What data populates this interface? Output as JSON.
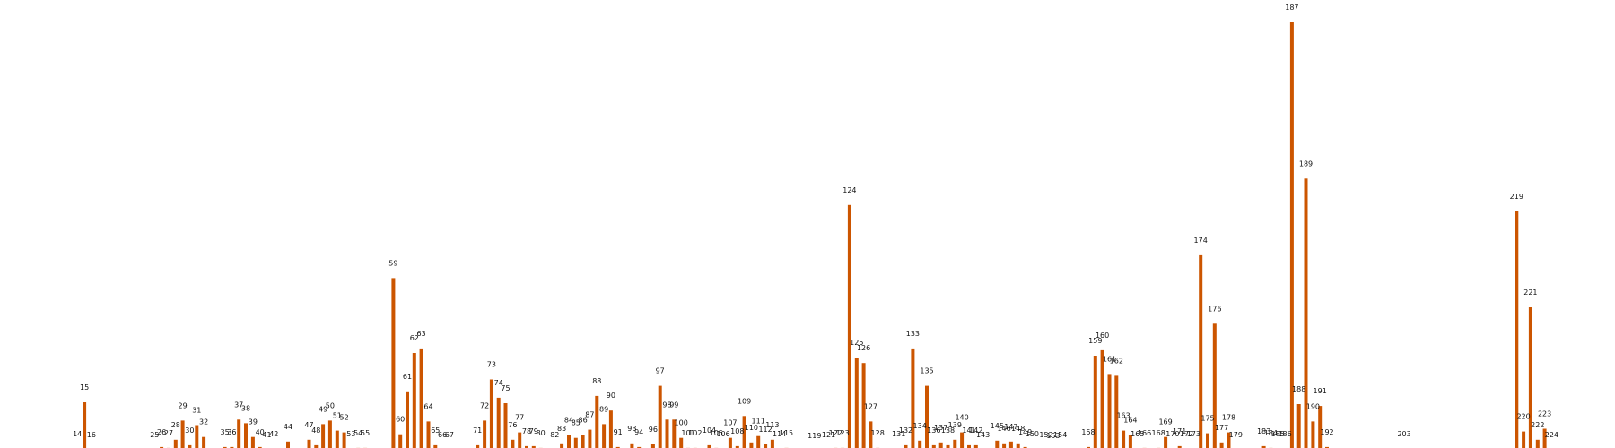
{
  "chart_data": {
    "type": "bar",
    "title": "",
    "xlabel": "",
    "ylabel": "",
    "ylim": [
      0,
      470
    ],
    "grid": false,
    "legend": "none",
    "bar_color": "#cc5500",
    "x_range": [
      4,
      232
    ],
    "bars": [
      {
        "x": 14,
        "value": 2,
        "label": "14"
      },
      {
        "x": 15,
        "value": 53,
        "label": "15"
      },
      {
        "x": 16,
        "value": 1,
        "label": "16"
      },
      {
        "x": 25,
        "value": 1,
        "label": "25"
      },
      {
        "x": 26,
        "value": 4,
        "label": "26"
      },
      {
        "x": 27,
        "value": 3,
        "label": "27"
      },
      {
        "x": 28,
        "value": 12,
        "label": "28"
      },
      {
        "x": 29,
        "value": 33,
        "label": "29"
      },
      {
        "x": 30,
        "value": 6,
        "label": "30"
      },
      {
        "x": 31,
        "value": 28,
        "label": "31"
      },
      {
        "x": 32,
        "value": 15,
        "label": "32"
      },
      {
        "x": 35,
        "value": 4,
        "label": "35"
      },
      {
        "x": 36,
        "value": 4,
        "label": "36"
      },
      {
        "x": 37,
        "value": 34,
        "label": "37"
      },
      {
        "x": 38,
        "value": 30,
        "label": "38"
      },
      {
        "x": 39,
        "value": 15,
        "label": "39"
      },
      {
        "x": 40,
        "value": 4,
        "label": "40"
      },
      {
        "x": 41,
        "value": 1,
        "label": "41"
      },
      {
        "x": 42,
        "value": 2,
        "label": "42"
      },
      {
        "x": 44,
        "value": 10,
        "label": "44"
      },
      {
        "x": 47,
        "value": 12,
        "label": "47"
      },
      {
        "x": 48,
        "value": 6,
        "label": "48"
      },
      {
        "x": 49,
        "value": 29,
        "label": "49"
      },
      {
        "x": 50,
        "value": 33,
        "label": "50"
      },
      {
        "x": 51,
        "value": 22,
        "label": "51"
      },
      {
        "x": 52,
        "value": 20,
        "label": "52"
      },
      {
        "x": 53,
        "value": 2,
        "label": "53"
      },
      {
        "x": 54,
        "value": 3,
        "label": "54"
      },
      {
        "x": 55,
        "value": 3,
        "label": "55"
      },
      {
        "x": 59,
        "value": 189,
        "label": "59"
      },
      {
        "x": 60,
        "value": 18,
        "label": "60"
      },
      {
        "x": 61,
        "value": 65,
        "label": "61"
      },
      {
        "x": 62,
        "value": 107,
        "label": "62"
      },
      {
        "x": 63,
        "value": 112,
        "label": "63"
      },
      {
        "x": 64,
        "value": 32,
        "label": "64"
      },
      {
        "x": 65,
        "value": 6,
        "label": "65"
      },
      {
        "x": 66,
        "value": 1,
        "label": "66"
      },
      {
        "x": 67,
        "value": 1,
        "label": "67"
      },
      {
        "x": 71,
        "value": 6,
        "label": "71"
      },
      {
        "x": 72,
        "value": 33,
        "label": "72"
      },
      {
        "x": 73,
        "value": 78,
        "label": "73"
      },
      {
        "x": 74,
        "value": 58,
        "label": "74"
      },
      {
        "x": 75,
        "value": 52,
        "label": "75"
      },
      {
        "x": 76,
        "value": 12,
        "label": "76"
      },
      {
        "x": 77,
        "value": 20,
        "label": "77"
      },
      {
        "x": 78,
        "value": 5,
        "label": "78"
      },
      {
        "x": 79,
        "value": 5,
        "label": "79"
      },
      {
        "x": 80,
        "value": 3,
        "label": "80"
      },
      {
        "x": 82,
        "value": 1,
        "label": "82"
      },
      {
        "x": 83,
        "value": 8,
        "label": "83"
      },
      {
        "x": 84,
        "value": 17,
        "label": "84"
      },
      {
        "x": 85,
        "value": 14,
        "label": "85"
      },
      {
        "x": 86,
        "value": 17,
        "label": "86"
      },
      {
        "x": 87,
        "value": 23,
        "label": "87"
      },
      {
        "x": 88,
        "value": 60,
        "label": "88"
      },
      {
        "x": 89,
        "value": 29,
        "label": "89"
      },
      {
        "x": 90,
        "value": 44,
        "label": "90"
      },
      {
        "x": 91,
        "value": 4,
        "label": "91"
      },
      {
        "x": 93,
        "value": 8,
        "label": "93"
      },
      {
        "x": 94,
        "value": 4,
        "label": "94"
      },
      {
        "x": 96,
        "value": 7,
        "label": "96"
      },
      {
        "x": 97,
        "value": 71,
        "label": "97"
      },
      {
        "x": 98,
        "value": 34,
        "label": "98"
      },
      {
        "x": 99,
        "value": 34,
        "label": "99"
      },
      {
        "x": 100,
        "value": 14,
        "label": "100"
      },
      {
        "x": 101,
        "value": 3,
        "label": "101"
      },
      {
        "x": 102,
        "value": 3,
        "label": "102"
      },
      {
        "x": 104,
        "value": 6,
        "label": "104"
      },
      {
        "x": 105,
        "value": 3,
        "label": "105"
      },
      {
        "x": 106,
        "value": 2,
        "label": "106"
      },
      {
        "x": 107,
        "value": 14,
        "label": "107"
      },
      {
        "x": 108,
        "value": 5,
        "label": "108"
      },
      {
        "x": 109,
        "value": 38,
        "label": "109"
      },
      {
        "x": 110,
        "value": 9,
        "label": "110"
      },
      {
        "x": 111,
        "value": 16,
        "label": "111"
      },
      {
        "x": 112,
        "value": 7,
        "label": "112"
      },
      {
        "x": 113,
        "value": 12,
        "label": "113"
      },
      {
        "x": 114,
        "value": 2,
        "label": "114"
      },
      {
        "x": 115,
        "value": 3,
        "label": "115"
      },
      {
        "x": 119,
        "value": 0,
        "label": "119"
      },
      {
        "x": 121,
        "value": 1,
        "label": "121"
      },
      {
        "x": 122,
        "value": 3,
        "label": "122"
      },
      {
        "x": 123,
        "value": 3,
        "label": "123"
      },
      {
        "x": 124,
        "value": 269,
        "label": "124"
      },
      {
        "x": 125,
        "value": 102,
        "label": "125"
      },
      {
        "x": 126,
        "value": 96,
        "label": "126"
      },
      {
        "x": 127,
        "value": 32,
        "label": "127"
      },
      {
        "x": 128,
        "value": 3,
        "label": "128"
      },
      {
        "x": 131,
        "value": 2,
        "label": "131"
      },
      {
        "x": 132,
        "value": 6,
        "label": "132"
      },
      {
        "x": 133,
        "value": 112,
        "label": "133"
      },
      {
        "x": 134,
        "value": 11,
        "label": "134"
      },
      {
        "x": 135,
        "value": 71,
        "label": "135"
      },
      {
        "x": 136,
        "value": 6,
        "label": "136"
      },
      {
        "x": 137,
        "value": 9,
        "label": "137"
      },
      {
        "x": 138,
        "value": 6,
        "label": "138"
      },
      {
        "x": 139,
        "value": 12,
        "label": "139"
      },
      {
        "x": 140,
        "value": 20,
        "label": "140"
      },
      {
        "x": 141,
        "value": 6,
        "label": "141"
      },
      {
        "x": 142,
        "value": 6,
        "label": "142"
      },
      {
        "x": 143,
        "value": 1,
        "label": "143"
      },
      {
        "x": 145,
        "value": 11,
        "label": "145"
      },
      {
        "x": 146,
        "value": 8,
        "label": "146"
      },
      {
        "x": 147,
        "value": 10,
        "label": "147"
      },
      {
        "x": 148,
        "value": 8,
        "label": "148"
      },
      {
        "x": 149,
        "value": 4,
        "label": "149"
      },
      {
        "x": 150,
        "value": 2,
        "label": "150"
      },
      {
        "x": 152,
        "value": 1,
        "label": "152"
      },
      {
        "x": 153,
        "value": 0,
        "label": "153"
      },
      {
        "x": 154,
        "value": 1,
        "label": "154"
      },
      {
        "x": 158,
        "value": 4,
        "label": "158"
      },
      {
        "x": 159,
        "value": 104,
        "label": "159"
      },
      {
        "x": 160,
        "value": 110,
        "label": "160"
      },
      {
        "x": 161,
        "value": 84,
        "label": "161"
      },
      {
        "x": 162,
        "value": 82,
        "label": "162"
      },
      {
        "x": 163,
        "value": 22,
        "label": "163"
      },
      {
        "x": 164,
        "value": 17,
        "label": "164"
      },
      {
        "x": 165,
        "value": 2,
        "label": "165"
      },
      {
        "x": 166,
        "value": 3,
        "label": "166"
      },
      {
        "x": 168,
        "value": 3,
        "label": "168"
      },
      {
        "x": 169,
        "value": 15,
        "label": "169"
      },
      {
        "x": 170,
        "value": 2,
        "label": "170"
      },
      {
        "x": 171,
        "value": 5,
        "label": "171"
      },
      {
        "x": 172,
        "value": 2,
        "label": "172"
      },
      {
        "x": 173,
        "value": 2,
        "label": "173"
      },
      {
        "x": 174,
        "value": 214,
        "label": "174"
      },
      {
        "x": 175,
        "value": 19,
        "label": "175"
      },
      {
        "x": 176,
        "value": 139,
        "label": "176"
      },
      {
        "x": 177,
        "value": 9,
        "label": "177"
      },
      {
        "x": 178,
        "value": 20,
        "label": "178"
      },
      {
        "x": 179,
        "value": 1,
        "label": "179"
      },
      {
        "x": 183,
        "value": 5,
        "label": "183"
      },
      {
        "x": 184,
        "value": 3,
        "label": "184"
      },
      {
        "x": 185,
        "value": 2,
        "label": "185"
      },
      {
        "x": 186,
        "value": 2,
        "label": "186"
      },
      {
        "x": 187,
        "value": 469,
        "label": "187"
      },
      {
        "x": 188,
        "value": 51,
        "label": "188"
      },
      {
        "x": 189,
        "value": 298,
        "label": "189"
      },
      {
        "x": 190,
        "value": 32,
        "label": "190"
      },
      {
        "x": 191,
        "value": 49,
        "label": "191"
      },
      {
        "x": 192,
        "value": 4,
        "label": "192"
      },
      {
        "x": 203,
        "value": 2,
        "label": "203"
      },
      {
        "x": 219,
        "value": 262,
        "label": "219"
      },
      {
        "x": 220,
        "value": 21,
        "label": "220"
      },
      {
        "x": 221,
        "value": 157,
        "label": "221"
      },
      {
        "x": 222,
        "value": 12,
        "label": "222"
      },
      {
        "x": 223,
        "value": 24,
        "label": "223"
      },
      {
        "x": 224,
        "value": 1,
        "label": "224"
      }
    ]
  }
}
